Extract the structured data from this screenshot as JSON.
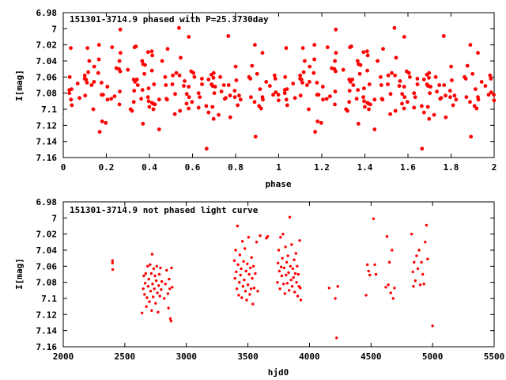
{
  "chart_data": [
    {
      "type": "scatter",
      "title": "151301-3714.9 phased with P=25.3730day",
      "xlabel": "phase",
      "ylabel": "I[mag]",
      "xlim": [
        0,
        2
      ],
      "ylim": [
        7.16,
        6.98
      ],
      "y_inverted": true,
      "grid": false,
      "marker_color": "#ff0000",
      "xticks": [
        "0",
        "0.2",
        "0.4",
        "0.6",
        "0.8",
        "1",
        "1.2",
        "1.4",
        "1.6",
        "1.8",
        "2"
      ],
      "xtick_values": [
        0,
        0.2,
        0.4,
        0.6,
        0.8,
        1.0,
        1.2,
        1.4,
        1.6,
        1.8,
        2.0
      ],
      "yticks": [
        "6.98",
        "7",
        "7.02",
        "7.04",
        "7.06",
        "7.08",
        "7.1",
        "7.12",
        "7.14",
        "7.16"
      ],
      "ytick_values": [
        6.98,
        7.0,
        7.02,
        7.04,
        7.06,
        7.08,
        7.1,
        7.12,
        7.14,
        7.16
      ],
      "points": []
    },
    {
      "type": "scatter",
      "title": "151301-3714.9 not phased light curve",
      "xlabel": "hjd0",
      "ylabel": "I[mag]",
      "xlim": [
        2000,
        5500
      ],
      "ylim": [
        7.16,
        6.98
      ],
      "y_inverted": true,
      "grid": false,
      "marker_color": "#ff0000",
      "xticks": [
        "2000",
        "2500",
        "3000",
        "3500",
        "4000",
        "4500",
        "5000",
        "5500"
      ],
      "xtick_values": [
        2000,
        2500,
        3000,
        3500,
        4000,
        4500,
        5000,
        5500
      ],
      "yticks": [
        "6.98",
        "7",
        "7.02",
        "7.04",
        "7.06",
        "7.08",
        "7.1",
        "7.12",
        "7.14",
        "7.16"
      ],
      "ytick_values": [
        6.98,
        7.0,
        7.02,
        7.04,
        7.06,
        7.08,
        7.1,
        7.12,
        7.14,
        7.16
      ],
      "points": [
        [
          2400,
          7.053
        ],
        [
          2400,
          7.056
        ],
        [
          2402,
          7.064
        ],
        [
          2640,
          7.118
        ],
        [
          2650,
          7.088
        ],
        [
          2655,
          7.072
        ],
        [
          2660,
          7.095
        ],
        [
          2665,
          7.081
        ],
        [
          2670,
          7.069
        ],
        [
          2675,
          7.11
        ],
        [
          2680,
          7.099
        ],
        [
          2685,
          7.06
        ],
        [
          2690,
          7.085
        ],
        [
          2695,
          7.076
        ],
        [
          2700,
          7.104
        ],
        [
          2705,
          7.058
        ],
        [
          2710,
          7.091
        ],
        [
          2715,
          7.069
        ],
        [
          2718,
          7.115
        ],
        [
          2722,
          7.045
        ],
        [
          2726,
          7.082
        ],
        [
          2730,
          7.098
        ],
        [
          2735,
          7.063
        ],
        [
          2740,
          7.088
        ],
        [
          2745,
          7.072
        ],
        [
          2750,
          7.106
        ],
        [
          2755,
          7.078
        ],
        [
          2760,
          7.06
        ],
        [
          2765,
          7.093
        ],
        [
          2770,
          7.117
        ],
        [
          2775,
          7.084
        ],
        [
          2780,
          7.07
        ],
        [
          2785,
          7.097
        ],
        [
          2790,
          7.062
        ],
        [
          2795,
          7.089
        ],
        [
          2800,
          7.079
        ],
        [
          2820,
          7.1
        ],
        [
          2830,
          7.082
        ],
        [
          2840,
          7.065
        ],
        [
          2850,
          7.094
        ],
        [
          2855,
          7.112
        ],
        [
          2860,
          7.076
        ],
        [
          2865,
          7.088
        ],
        [
          2870,
          7.125
        ],
        [
          2875,
          7.128
        ],
        [
          2880,
          7.062
        ],
        [
          2885,
          7.086
        ],
        [
          3390,
          7.053
        ],
        [
          3395,
          7.075
        ],
        [
          3400,
          7.04
        ],
        [
          3405,
          7.067
        ],
        [
          3410,
          7.088
        ],
        [
          3415,
          7.01
        ],
        [
          3420,
          7.058
        ],
        [
          3425,
          7.096
        ],
        [
          3430,
          7.08
        ],
        [
          3435,
          7.046
        ],
        [
          3440,
          7.071
        ],
        [
          3445,
          7.063
        ],
        [
          3450,
          7.099
        ],
        [
          3455,
          7.029
        ],
        [
          3460,
          7.085
        ],
        [
          3465,
          7.054
        ],
        [
          3470,
          7.077
        ],
        [
          3475,
          7.038
        ],
        [
          3480,
          7.091
        ],
        [
          3485,
          7.066
        ],
        [
          3490,
          7.102
        ],
        [
          3495,
          7.057
        ],
        [
          3500,
          7.083
        ],
        [
          3505,
          7.024
        ],
        [
          3510,
          7.07
        ],
        [
          3515,
          7.095
        ],
        [
          3520,
          7.062
        ],
        [
          3525,
          7.088
        ],
        [
          3530,
          7.049
        ],
        [
          3535,
          7.075
        ],
        [
          3540,
          7.107
        ],
        [
          3545,
          7.06
        ],
        [
          3550,
          7.087
        ],
        [
          3560,
          7.069
        ],
        [
          3570,
          7.03
        ],
        [
          3580,
          7.091
        ],
        [
          3600,
          7.022
        ],
        [
          3650,
          7.025
        ],
        [
          3660,
          7.023
        ],
        [
          3740,
          7.08
        ],
        [
          3745,
          7.056
        ],
        [
          3750,
          7.04
        ],
        [
          3755,
          7.066
        ],
        [
          3760,
          7.088
        ],
        [
          3765,
          7.024
        ],
        [
          3770,
          7.061
        ],
        [
          3775,
          7.072
        ],
        [
          3780,
          7.05
        ],
        [
          3785,
          7.02
        ],
        [
          3790,
          7.082
        ],
        [
          3795,
          7.062
        ],
        [
          3800,
          7.094
        ],
        [
          3805,
          7.036
        ],
        [
          3810,
          7.071
        ],
        [
          3815,
          7.055
        ],
        [
          3820,
          7.081
        ],
        [
          3825,
          7.047
        ],
        [
          3830,
          7.068
        ],
        [
          3835,
          7.09
        ],
        [
          3840,
          6.999
        ],
        [
          3845,
          7.06
        ],
        [
          3850,
          7.077
        ],
        [
          3855,
          7.033
        ],
        [
          3860,
          7.085
        ],
        [
          3865,
          7.063
        ],
        [
          3870,
          7.074
        ],
        [
          3875,
          7.052
        ],
        [
          3880,
          7.092
        ],
        [
          3885,
          7.069
        ],
        [
          3890,
          7.044
        ],
        [
          3895,
          7.08
        ],
        [
          3900,
          7.06
        ],
        [
          3905,
          7.097
        ],
        [
          3910,
          7.07
        ],
        [
          3915,
          7.085
        ],
        [
          3920,
          7.028
        ],
        [
          3925,
          7.087
        ],
        [
          3930,
          7.102
        ],
        [
          4160,
          7.087
        ],
        [
          4210,
          7.1
        ],
        [
          4220,
          7.149
        ],
        [
          4230,
          7.085
        ],
        [
          4460,
          7.096
        ],
        [
          4470,
          7.058
        ],
        [
          4480,
          7.066
        ],
        [
          4490,
          7.071
        ],
        [
          4520,
          7.001
        ],
        [
          4530,
          7.058
        ],
        [
          4540,
          7.07
        ],
        [
          4620,
          7.086
        ],
        [
          4630,
          7.023
        ],
        [
          4640,
          7.083
        ],
        [
          4650,
          7.055
        ],
        [
          4660,
          7.093
        ],
        [
          4670,
          7.04
        ],
        [
          4680,
          7.1
        ],
        [
          4690,
          7.087
        ],
        [
          4830,
          7.02
        ],
        [
          4840,
          7.067
        ],
        [
          4845,
          7.085
        ],
        [
          4850,
          7.055
        ],
        [
          4860,
          7.078
        ],
        [
          4870,
          7.047
        ],
        [
          4880,
          7.063
        ],
        [
          4890,
          7.04
        ],
        [
          4900,
          7.083
        ],
        [
          4910,
          7.055
        ],
        [
          4920,
          7.07
        ],
        [
          4930,
          7.082
        ],
        [
          4940,
          7.03
        ],
        [
          4950,
          7.009
        ],
        [
          4960,
          7.051
        ],
        [
          5000,
          7.134
        ]
      ]
    }
  ]
}
